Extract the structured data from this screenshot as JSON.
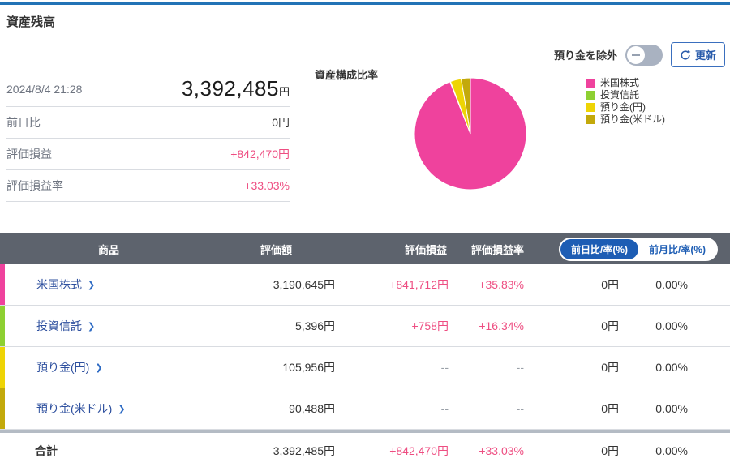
{
  "page": {
    "title": "資産残高"
  },
  "controls": {
    "exclude_toggle_label": "預り金を除外",
    "toggle_state": "off",
    "refresh_label": "更新"
  },
  "summary": {
    "as_of": "2024/8/4 21:28",
    "total_value": "3,392,485",
    "total_unit": "円",
    "rows": [
      {
        "label": "前日比",
        "value": "0円",
        "positive": false
      },
      {
        "label": "評価損益",
        "value": "+842,470円",
        "positive": true
      },
      {
        "label": "評価損益率",
        "value": "+33.03%",
        "positive": true
      }
    ]
  },
  "chart_data": {
    "type": "pie",
    "title": "資産構成比率",
    "legend_position": "right",
    "start_angle": "top",
    "direction": "clockwise",
    "slices": [
      {
        "label": "米国株式",
        "value": 3190645,
        "percent": 94.05,
        "color": "#ef429d"
      },
      {
        "label": "投資信託",
        "value": 5396,
        "percent": 0.16,
        "color": "#8ed032"
      },
      {
        "label": "預り金(円)",
        "value": 105956,
        "percent": 3.12,
        "color": "#eed405"
      },
      {
        "label": "預り金(米ドル)",
        "value": 90488,
        "percent": 2.67,
        "color": "#c3a90b"
      }
    ]
  },
  "table": {
    "headers": {
      "product": "商品",
      "value": "評価額",
      "pl": "評価損益",
      "pl_rate": "評価損益率"
    },
    "period_toggle": {
      "selected": "前日比/率(%)",
      "unselected": "前月比/率(%)"
    },
    "rows": [
      {
        "name": "米国株式",
        "color": "#ef429d",
        "value": "3,190,645円",
        "pl": "+841,712円",
        "pl_rate": "+35.83%",
        "day_change": "0円",
        "day_rate": "0.00%"
      },
      {
        "name": "投資信託",
        "color": "#8ed032",
        "value": "5,396円",
        "pl": "+758円",
        "pl_rate": "+16.34%",
        "day_change": "0円",
        "day_rate": "0.00%"
      },
      {
        "name": "預り金(円)",
        "color": "#eed405",
        "value": "105,956円",
        "pl": "--",
        "pl_rate": "--",
        "day_change": "0円",
        "day_rate": "0.00%"
      },
      {
        "name": "預り金(米ドル)",
        "color": "#c3a90b",
        "value": "90,488円",
        "pl": "--",
        "pl_rate": "--",
        "day_change": "0円",
        "day_rate": "0.00%"
      }
    ],
    "total": {
      "name": "合計",
      "value": "3,392,485円",
      "pl": "+842,470円",
      "pl_rate": "+33.03%",
      "day_change": "0円",
      "day_rate": "0.00%"
    }
  }
}
